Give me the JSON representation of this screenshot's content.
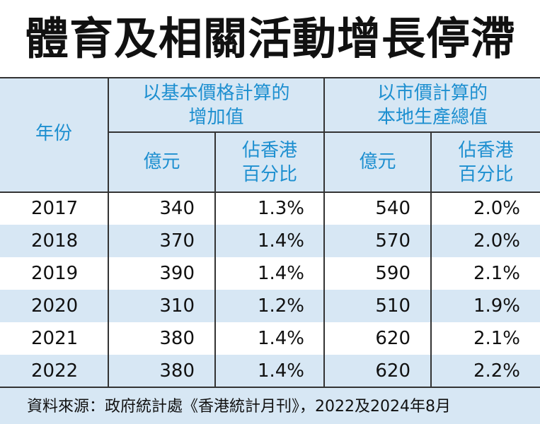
{
  "title": "體育及相關活動增長停滯",
  "header": {
    "year": "年份",
    "group_value_added": "以基本價格計算的\n增加值",
    "group_gdp": "以市價計算的\n本地生產總值",
    "unit_billion": "億元",
    "unit_percent_hk": "佔香港\n百分比"
  },
  "rows": [
    {
      "year": "2017",
      "va_amount": "340",
      "va_pct": "1.3%",
      "gdp_amount": "540",
      "gdp_pct": "2.0%"
    },
    {
      "year": "2018",
      "va_amount": "370",
      "va_pct": "1.4%",
      "gdp_amount": "570",
      "gdp_pct": "2.0%"
    },
    {
      "year": "2019",
      "va_amount": "390",
      "va_pct": "1.4%",
      "gdp_amount": "590",
      "gdp_pct": "2.1%"
    },
    {
      "year": "2020",
      "va_amount": "310",
      "va_pct": "1.2%",
      "gdp_amount": "510",
      "gdp_pct": "1.9%"
    },
    {
      "year": "2021",
      "va_amount": "380",
      "va_pct": "1.4%",
      "gdp_amount": "620",
      "gdp_pct": "2.1%"
    },
    {
      "year": "2022",
      "va_amount": "380",
      "va_pct": "1.4%",
      "gdp_amount": "620",
      "gdp_pct": "2.2%"
    }
  ],
  "source": "資料來源：政府統計處《香港統計月刊》，2022及2024年8月",
  "colors": {
    "header_text": "#1d8fd0",
    "band": "#d7e7f4",
    "rule": "#333333"
  }
}
